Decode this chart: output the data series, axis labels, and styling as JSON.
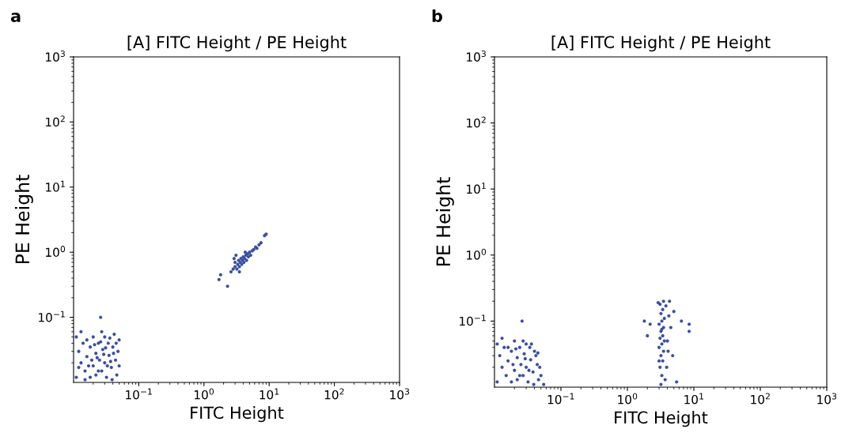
{
  "chart_data": [
    {
      "type": "scatter",
      "title": "[A] FITC Height / PE Height",
      "xlabel": "FITC Height",
      "ylabel": "PE Height",
      "annotations": [
        "a"
      ],
      "color": "#3a4fa0",
      "marker": "circle",
      "log": "xy",
      "grid": false,
      "xlim": [
        0.01,
        1000
      ],
      "ylim": [
        0.01,
        1000
      ],
      "xticks": [
        {
          "value": 0.1,
          "label": "10$^{−1}$"
        },
        {
          "value": 1,
          "label": "10$^{0}$"
        },
        {
          "value": 10,
          "label": "10$^{1}$"
        },
        {
          "value": 100,
          "label": "10$^{2}$"
        },
        {
          "value": 1000,
          "label": "10$^{3}$"
        }
      ],
      "yticks": [
        {
          "value": 0.1,
          "label": "10$^{−1}$"
        },
        {
          "value": 1,
          "label": "10$^{0}$"
        },
        {
          "value": 10,
          "label": "10$^{1}$"
        },
        {
          "value": 100,
          "label": "10$^{2}$"
        },
        {
          "value": 1000,
          "label": "10$^{3}$"
        }
      ],
      "x": [
        0.011,
        0.013,
        0.015,
        0.012,
        0.014,
        0.016,
        0.018,
        0.018,
        0.02,
        0.02,
        0.022,
        0.022,
        0.024,
        0.025,
        0.026,
        0.027,
        0.028,
        0.03,
        0.03,
        0.032,
        0.034,
        0.035,
        0.038,
        0.04,
        0.042,
        0.044,
        0.046,
        0.048,
        0.05,
        0.05,
        0.011,
        0.013,
        0.016,
        0.019,
        0.021,
        0.024,
        0.027,
        0.029,
        0.033,
        0.036,
        0.039,
        0.045,
        0.015,
        0.017,
        0.023,
        0.031,
        0.037,
        0.012,
        0.026,
        0.041,
        1.8,
        1.7,
        2.3,
        2.6,
        2.8,
        3.0,
        3.0,
        3.2,
        3.3,
        3.4,
        3.5,
        3.6,
        3.7,
        3.8,
        3.9,
        4.0,
        4.1,
        4.2,
        4.4,
        4.5,
        4.7,
        4.8,
        5.0,
        5.2,
        5.5,
        5.8,
        6.2,
        6.5,
        7.0,
        7.5,
        8.5,
        9.0,
        2.9,
        3.1,
        4.3,
        3.5
      ],
      "values": [
        0.012,
        0.02,
        0.015,
        0.03,
        0.04,
        0.025,
        0.012,
        0.035,
        0.018,
        0.05,
        0.028,
        0.013,
        0.04,
        0.022,
        0.1,
        0.015,
        0.032,
        0.05,
        0.02,
        0.012,
        0.04,
        0.026,
        0.017,
        0.035,
        0.055,
        0.022,
        0.013,
        0.03,
        0.045,
        0.018,
        0.05,
        0.06,
        0.045,
        0.022,
        0.038,
        0.015,
        0.06,
        0.027,
        0.018,
        0.048,
        0.011,
        0.04,
        0.011,
        0.018,
        0.024,
        0.034,
        0.021,
        0.017,
        0.042,
        0.028,
        0.45,
        0.38,
        0.3,
        0.5,
        0.55,
        0.6,
        0.7,
        0.55,
        0.65,
        0.75,
        0.6,
        0.7,
        0.8,
        0.65,
        0.75,
        0.85,
        0.7,
        0.8,
        0.9,
        0.75,
        0.95,
        0.85,
        1.0,
        0.9,
        1.05,
        1.1,
        1.2,
        1.15,
        1.3,
        1.4,
        1.8,
        1.9,
        0.8,
        0.9,
        1.0,
        0.5
      ]
    },
    {
      "type": "scatter",
      "title": "[A] FITC Height / PE Height",
      "xlabel": "FITC Height",
      "ylabel": "PE Height",
      "annotations": [
        "b"
      ],
      "color": "#3a4fa0",
      "marker": "circle",
      "log": "xy",
      "grid": false,
      "xlim": [
        0.01,
        1000
      ],
      "ylim": [
        0.01,
        1000
      ],
      "xticks": [
        {
          "value": 0.1,
          "label": "10$^{−1}$"
        },
        {
          "value": 1,
          "label": "10$^{0}$"
        },
        {
          "value": 10,
          "label": "10$^{1}$"
        },
        {
          "value": 100,
          "label": "10$^{2}$"
        },
        {
          "value": 1000,
          "label": "10$^{3}$"
        }
      ],
      "yticks": [
        {
          "value": 0.1,
          "label": "10$^{−1}$"
        },
        {
          "value": 1,
          "label": "10$^{0}$"
        },
        {
          "value": 10,
          "label": "10$^{1}$"
        },
        {
          "value": 100,
          "label": "10$^{2}$"
        },
        {
          "value": 1000,
          "label": "10$^{3}$"
        }
      ],
      "x": [
        0.011,
        0.013,
        0.015,
        0.012,
        0.014,
        0.016,
        0.018,
        0.018,
        0.02,
        0.02,
        0.022,
        0.022,
        0.024,
        0.025,
        0.026,
        0.027,
        0.028,
        0.03,
        0.03,
        0.032,
        0.034,
        0.035,
        0.038,
        0.04,
        0.042,
        0.044,
        0.046,
        0.048,
        0.05,
        0.055,
        0.011,
        0.013,
        0.016,
        0.019,
        0.021,
        0.024,
        0.027,
        0.029,
        0.033,
        0.036,
        0.039,
        0.045,
        3.2,
        3.3,
        3.1,
        3.4,
        3.2,
        3.5,
        3.0,
        3.3,
        3.6,
        3.1,
        3.4,
        3.2,
        3.5,
        3.0,
        3.3,
        3.6,
        3.2,
        3.4,
        3.1,
        3.5,
        2.9,
        3.8,
        4.2,
        4.5,
        4.0,
        4.8,
        2.2,
        1.8,
        2.0,
        4.3,
        8.5,
        8.5,
        6.5,
        5.0,
        3.9,
        3.7,
        5.5,
        4.1,
        3.0,
        3.3
      ],
      "values": [
        0.012,
        0.02,
        0.015,
        0.03,
        0.04,
        0.025,
        0.012,
        0.035,
        0.018,
        0.05,
        0.028,
        0.013,
        0.04,
        0.022,
        0.1,
        0.015,
        0.032,
        0.045,
        0.02,
        0.012,
        0.04,
        0.026,
        0.017,
        0.035,
        0.03,
        0.022,
        0.013,
        0.02,
        0.015,
        0.011,
        0.045,
        0.055,
        0.04,
        0.022,
        0.038,
        0.015,
        0.05,
        0.027,
        0.018,
        0.045,
        0.011,
        0.033,
        0.011,
        0.015,
        0.02,
        0.025,
        0.03,
        0.035,
        0.04,
        0.045,
        0.05,
        0.055,
        0.06,
        0.07,
        0.08,
        0.09,
        0.1,
        0.11,
        0.13,
        0.15,
        0.18,
        0.2,
        0.19,
        0.17,
        0.12,
        0.08,
        0.05,
        0.03,
        0.09,
        0.1,
        0.06,
        0.2,
        0.09,
        0.07,
        0.1,
        0.14,
        0.02,
        0.013,
        0.012,
        0.035,
        0.025,
        0.075
      ]
    }
  ]
}
